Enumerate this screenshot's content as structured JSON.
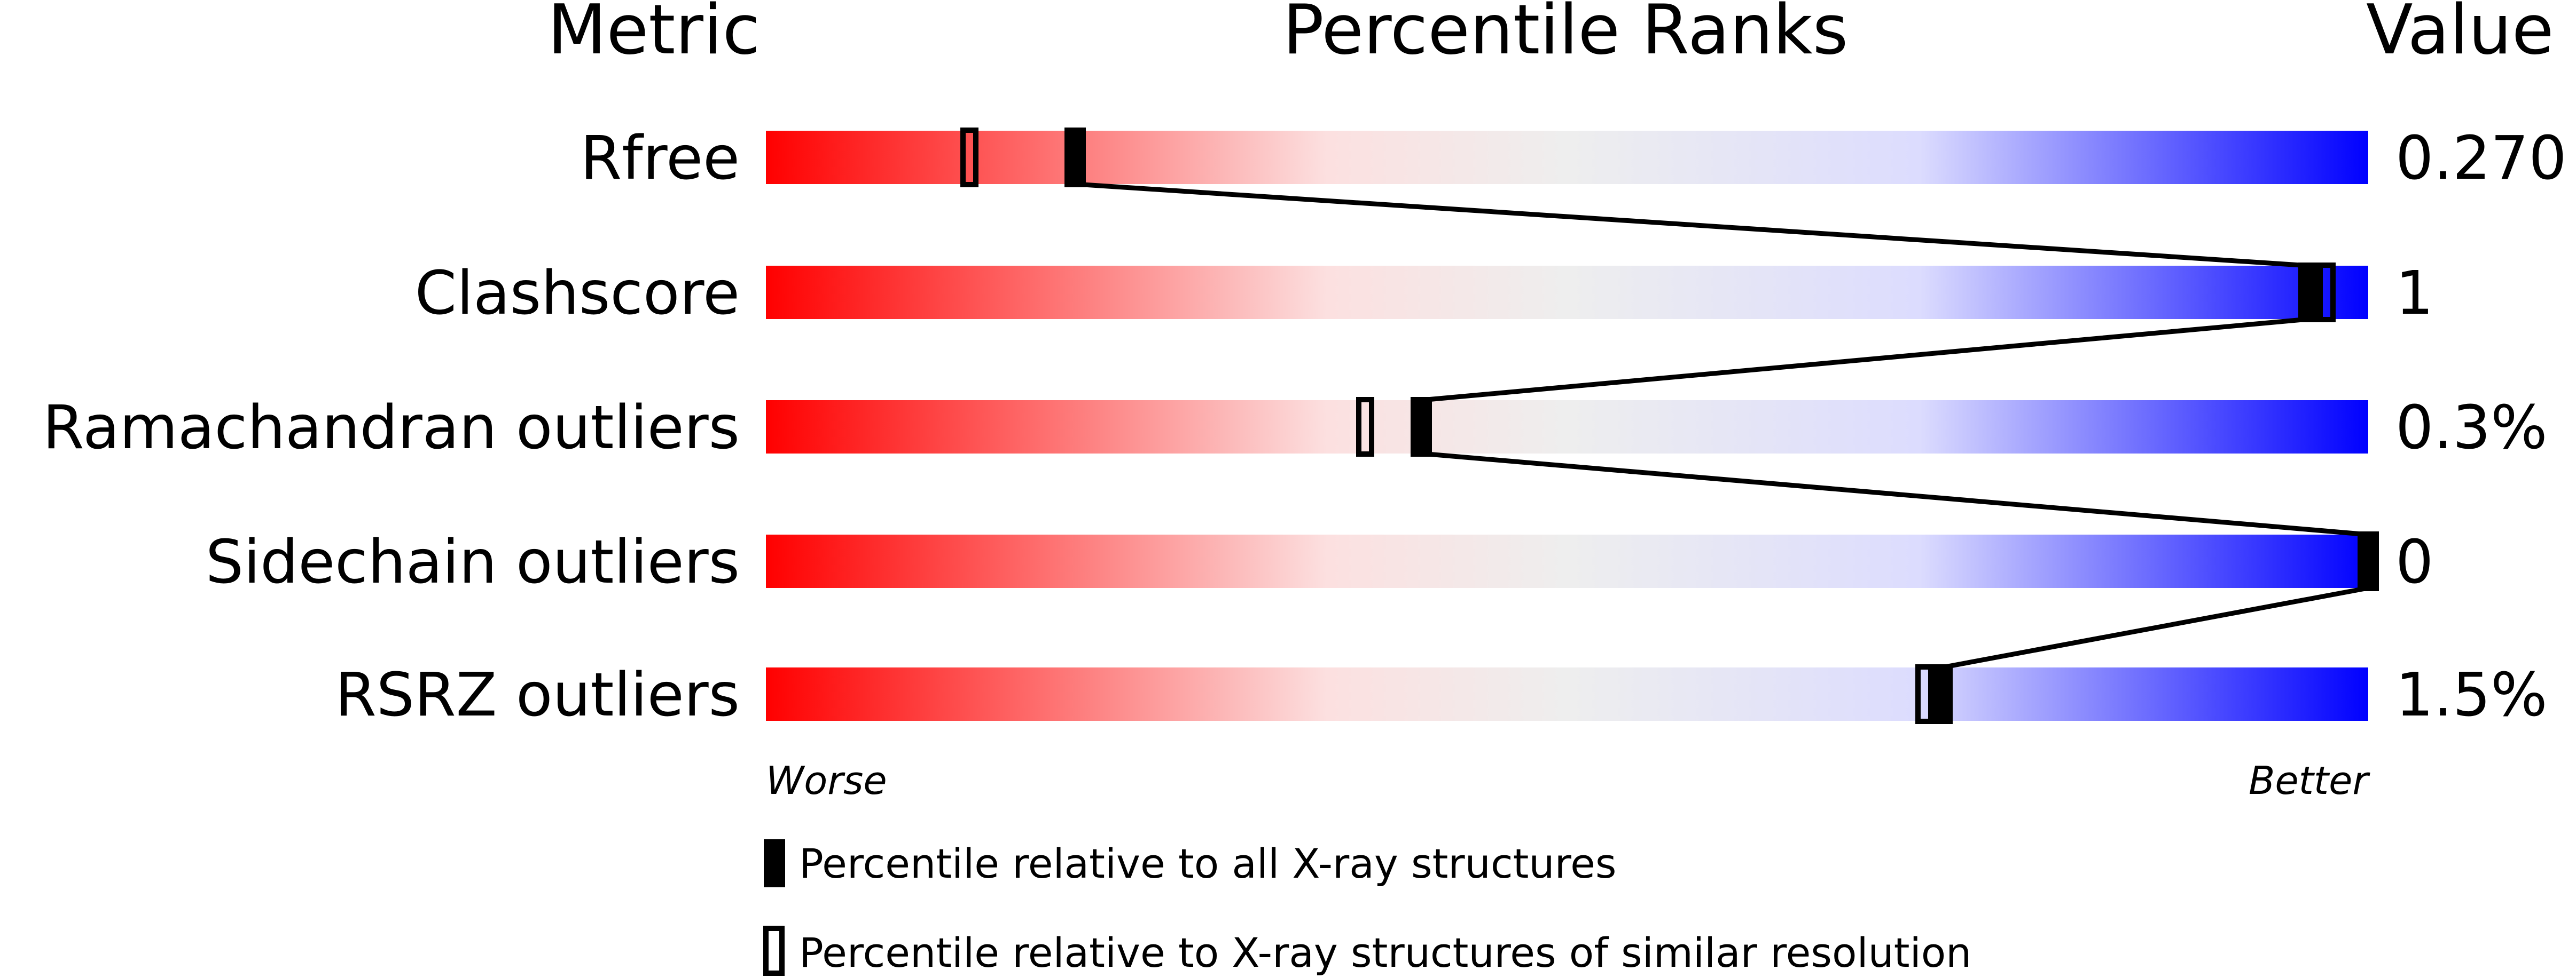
{
  "chart_data": {
    "type": "percentile-slider",
    "headers": {
      "metric": "Metric",
      "ranks": "Percentile Ranks",
      "value": "Value"
    },
    "xlim": [
      0,
      100
    ],
    "axis_labels": {
      "left": "Worse",
      "right": "Better"
    },
    "rows": [
      {
        "metric": "Rfree",
        "value": "0.270",
        "percentile_all": 19.3,
        "percentile_similar": 12.7
      },
      {
        "metric": "Clashscore",
        "value": "1",
        "percentile_all": 96.3,
        "percentile_similar": 97.4
      },
      {
        "metric": "Ramachandran outliers",
        "value": "0.3%",
        "percentile_all": 40.9,
        "percentile_similar": 37.4
      },
      {
        "metric": "Sidechain outliers",
        "value": "0",
        "percentile_all": 100,
        "percentile_similar": 100
      },
      {
        "metric": "RSRZ outliers",
        "value": "1.5%",
        "percentile_all": 73.4,
        "percentile_similar": 72.3
      }
    ],
    "legend": [
      {
        "marker": "filled",
        "label": "Percentile relative to all X-ray structures"
      },
      {
        "marker": "open",
        "label": "Percentile relative to X-ray structures of similar resolution"
      }
    ],
    "colors": {
      "worse": "#ff0000",
      "middle": "#eeeeee",
      "better": "#0000ff",
      "marker": "#000000"
    }
  }
}
